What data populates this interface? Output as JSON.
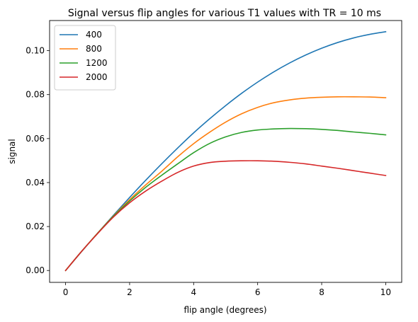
{
  "chart_data": {
    "type": "line",
    "title": "Signal versus flip angles for various T1 values with TR = 10 ms",
    "xlabel": "flip angle (degrees)",
    "ylabel": "signal",
    "xlim": [
      -0.5,
      10.5
    ],
    "ylim": [
      -0.0054,
      0.1137
    ],
    "xticks": [
      0,
      2,
      4,
      6,
      8,
      10
    ],
    "xtick_labels": [
      "0",
      "2",
      "4",
      "6",
      "8",
      "10"
    ],
    "yticks": [
      0.0,
      0.02,
      0.04,
      0.06,
      0.08,
      0.1
    ],
    "ytick_labels": [
      "0.00",
      "0.02",
      "0.04",
      "0.06",
      "0.08",
      "0.10"
    ],
    "grid": false,
    "legend": {
      "position": "top-left"
    },
    "x": [
      0,
      0.5,
      1,
      1.5,
      2,
      2.5,
      3,
      3.5,
      4,
      4.5,
      5,
      5.5,
      6,
      6.5,
      7,
      7.5,
      8,
      8.5,
      9,
      9.5,
      10
    ],
    "series": [
      {
        "name": "400",
        "color": "#1f77b4",
        "values": [
          0.0,
          0.0086,
          0.017,
          0.0252,
          0.0332,
          0.041,
          0.0485,
          0.0557,
          0.0626,
          0.069,
          0.075,
          0.0806,
          0.0857,
          0.0903,
          0.0944,
          0.098,
          0.1011,
          0.1037,
          0.1058,
          0.1074,
          0.1086
        ]
      },
      {
        "name": "800",
        "color": "#ff7f0e",
        "values": [
          0.0,
          0.0087,
          0.017,
          0.0249,
          0.0322,
          0.0389,
          0.0451,
          0.0517,
          0.0577,
          0.0629,
          0.0675,
          0.0713,
          0.0742,
          0.0763,
          0.0776,
          0.0784,
          0.0788,
          0.079,
          0.079,
          0.0789,
          0.0786
        ]
      },
      {
        "name": "1200",
        "color": "#2ca02c",
        "values": [
          0.0,
          0.0087,
          0.0169,
          0.0247,
          0.0316,
          0.0378,
          0.0433,
          0.0485,
          0.0536,
          0.0578,
          0.0608,
          0.0628,
          0.0639,
          0.0644,
          0.0646,
          0.0645,
          0.0642,
          0.0637,
          0.063,
          0.0624,
          0.0617
        ]
      },
      {
        "name": "2000",
        "color": "#d62728",
        "values": [
          0.0,
          0.0087,
          0.0168,
          0.0244,
          0.0308,
          0.0361,
          0.0406,
          0.0446,
          0.0475,
          0.0491,
          0.0497,
          0.0499,
          0.0499,
          0.0497,
          0.0492,
          0.0485,
          0.0475,
          0.0465,
          0.0454,
          0.0443,
          0.0432
        ]
      }
    ]
  }
}
